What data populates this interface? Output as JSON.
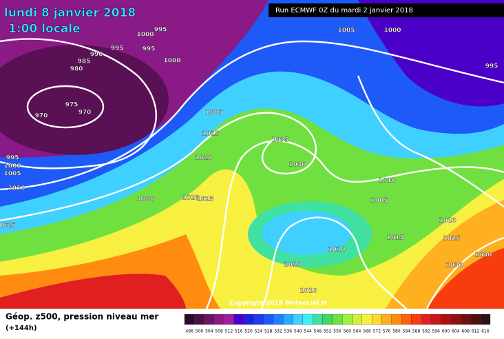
{
  "header": {
    "date": "lundi 8 janvier 2018",
    "time": "1:00 locale",
    "run": "Run ECMWF 0Z du mardi 2 janvier 2018"
  },
  "map": {
    "isobar_labels": [
      995,
      1000,
      995,
      995,
      990,
      985,
      980,
      1000,
      975,
      970,
      970,
      1005,
      1000,
      995,
      1005,
      1015,
      1020,
      1035,
      1030,
      995,
      1000,
      1005,
      1010,
      1000,
      1020,
      1025,
      1010,
      1005,
      1025,
      1020,
      1025,
      1015,
      1010,
      1030,
      1030,
      1010,
      1010
    ],
    "copyright": "Copyright 2018 Meteociel.fr"
  },
  "legend": {
    "title": "Géop. z500, pression niveau mer",
    "lead": "(+144h)",
    "scale": {
      "values": [
        496,
        500,
        504,
        508,
        512,
        516,
        520,
        524,
        528,
        532,
        536,
        540,
        544,
        548,
        552,
        556,
        560,
        564,
        568,
        572,
        576,
        580,
        584,
        588,
        592,
        596,
        600,
        604,
        608,
        612,
        616
      ],
      "colors": [
        "#2b0a2b",
        "#4a1048",
        "#6a1565",
        "#8a1a86",
        "#a020a0",
        "#4b00c8",
        "#2020e0",
        "#1c3cf0",
        "#1e5af8",
        "#2080ff",
        "#30a8ff",
        "#40d0ff",
        "#40f0f0",
        "#40e0a0",
        "#40d860",
        "#70e040",
        "#a0f040",
        "#d0f040",
        "#f8f040",
        "#ffd830",
        "#ffb020",
        "#ff8c10",
        "#ff6010",
        "#f83c10",
        "#e02020",
        "#c81818",
        "#b01010",
        "#901010",
        "#701010",
        "#501010",
        "#301010"
      ]
    }
  }
}
